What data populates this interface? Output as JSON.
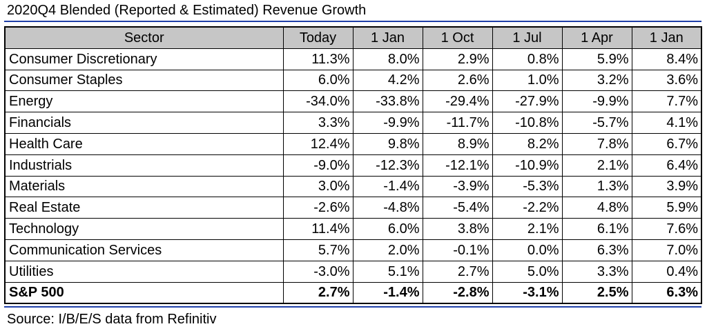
{
  "title": "2020Q4 Blended (Reported & Estimated) Revenue Growth",
  "source": "Source: I/B/E/S data from Refinitiv",
  "chart_data": {
    "type": "table",
    "title": "2020Q4 Blended (Reported & Estimated) Revenue Growth",
    "columns": [
      "Sector",
      "Today",
      "1 Jan",
      "1 Oct",
      "1 Jul",
      "1 Apr",
      "1 Jan"
    ],
    "rows": [
      {
        "sector": "Consumer Discretionary",
        "values": [
          "11.3%",
          "8.0%",
          "2.9%",
          "0.8%",
          "5.9%",
          "8.4%"
        ]
      },
      {
        "sector": "Consumer Staples",
        "values": [
          "6.0%",
          "4.2%",
          "2.6%",
          "1.0%",
          "3.2%",
          "3.6%"
        ]
      },
      {
        "sector": "Energy",
        "values": [
          "-34.0%",
          "-33.8%",
          "-29.4%",
          "-27.9%",
          "-9.9%",
          "7.7%"
        ]
      },
      {
        "sector": "Financials",
        "values": [
          "3.3%",
          "-9.9%",
          "-11.7%",
          "-10.8%",
          "-5.7%",
          "4.1%"
        ]
      },
      {
        "sector": "Health Care",
        "values": [
          "12.4%",
          "9.8%",
          "8.9%",
          "8.2%",
          "7.8%",
          "6.7%"
        ]
      },
      {
        "sector": "Industrials",
        "values": [
          "-9.0%",
          "-12.3%",
          "-12.1%",
          "-10.9%",
          "2.1%",
          "6.4%"
        ]
      },
      {
        "sector": "Materials",
        "values": [
          "3.0%",
          "-1.4%",
          "-3.9%",
          "-5.3%",
          "1.3%",
          "3.9%"
        ]
      },
      {
        "sector": "Real Estate",
        "values": [
          "-2.6%",
          "-4.8%",
          "-5.4%",
          "-2.2%",
          "4.8%",
          "5.9%"
        ]
      },
      {
        "sector": "Technology",
        "values": [
          "11.4%",
          "6.0%",
          "3.8%",
          "2.1%",
          "6.1%",
          "7.6%"
        ]
      },
      {
        "sector": "Communication Services",
        "values": [
          "5.7%",
          "2.0%",
          "-0.1%",
          "0.0%",
          "6.3%",
          "7.0%"
        ]
      },
      {
        "sector": "Utilities",
        "values": [
          "-3.0%",
          "5.1%",
          "2.7%",
          "5.0%",
          "3.3%",
          "0.4%"
        ]
      },
      {
        "sector": "S&P 500",
        "values": [
          "2.7%",
          "-1.4%",
          "-2.8%",
          "-3.1%",
          "2.5%",
          "6.3%"
        ],
        "bold": true
      }
    ]
  },
  "colors": {
    "header_background": "#c6c6c6",
    "rule": "#1f3fa8",
    "grid": "#000000"
  }
}
